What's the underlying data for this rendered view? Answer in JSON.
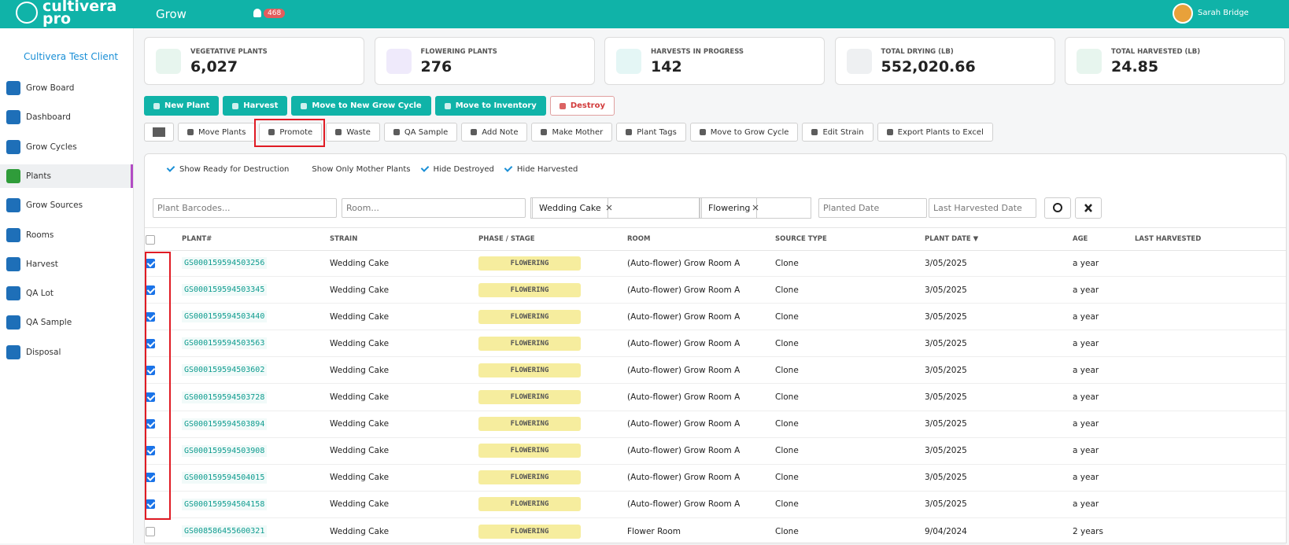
{
  "header": {
    "logo_top": "cultivera",
    "logo_bottom": "pro",
    "module": "Grow",
    "notification_count": "468",
    "user": "Sarah Bridge"
  },
  "sidebar": {
    "client": "Cultivera Test Client",
    "items": [
      {
        "label": "Grow Board",
        "active": false
      },
      {
        "label": "Dashboard",
        "active": false
      },
      {
        "label": "Grow Cycles",
        "active": false
      },
      {
        "label": "Plants",
        "active": true
      },
      {
        "label": "Grow Sources",
        "active": false
      },
      {
        "label": "Rooms",
        "active": false
      },
      {
        "label": "Harvest",
        "active": false
      },
      {
        "label": "QA Lot",
        "active": false
      },
      {
        "label": "QA Sample",
        "active": false
      },
      {
        "label": "Disposal",
        "active": false
      }
    ]
  },
  "stats": [
    {
      "label": "VEGETATIVE PLANTS",
      "value": "6,027"
    },
    {
      "label": "FLOWERING PLANTS",
      "value": "276"
    },
    {
      "label": "HARVESTS IN PROGRESS",
      "value": "142"
    },
    {
      "label": "TOTAL DRYING (LB)",
      "value": "552,020.66"
    },
    {
      "label": "TOTAL HARVESTED (LB)",
      "value": "24.85"
    }
  ],
  "actions": {
    "primary": [
      {
        "label": "New Plant",
        "style": "teal"
      },
      {
        "label": "Harvest",
        "style": "teal"
      },
      {
        "label": "Move to New Grow Cycle",
        "style": "teal"
      },
      {
        "label": "Move to Inventory",
        "style": "teal"
      },
      {
        "label": "Destroy",
        "style": "danger"
      }
    ],
    "secondary": [
      "Move Plants",
      "Promote",
      "Waste",
      "QA Sample",
      "Add Note",
      "Make Mother",
      "Plant Tags",
      "Move to Grow Cycle",
      "Edit Strain",
      "Export Plants to Excel"
    ]
  },
  "filters": [
    {
      "label": "Show Ready for Destruction",
      "checked": true
    },
    {
      "label": "Show Only Mother Plants",
      "checked": false
    },
    {
      "label": "Hide Destroyed",
      "checked": true
    },
    {
      "label": "Hide Harvested",
      "checked": true
    }
  ],
  "search": {
    "plant_barcodes": "Plant Barcodes...",
    "room": "Room...",
    "strain_tag": "Wedding Cake",
    "phase_tag": "Flowering",
    "planted_date": "Planted Date",
    "last_harvested_date": "Last Harvested Date"
  },
  "table": {
    "columns": [
      "PLANT#",
      "STRAIN",
      "PHASE / STAGE",
      "ROOM",
      "SOURCE TYPE",
      "PLANT DATE ▼",
      "AGE",
      "LAST HARVESTED"
    ],
    "rows": [
      {
        "checked": true,
        "cells": [
          "GS000159594503256",
          "Wedding Cake",
          "FLOWERING",
          "(Auto-flower) Grow Room A",
          "Clone",
          "3/05/2025",
          "a year"
        ]
      },
      {
        "checked": true,
        "cells": [
          "GS000159594503345",
          "Wedding Cake",
          "FLOWERING",
          "(Auto-flower) Grow Room A",
          "Clone",
          "3/05/2025",
          "a year"
        ]
      },
      {
        "checked": true,
        "cells": [
          "GS000159594503440",
          "Wedding Cake",
          "FLOWERING",
          "(Auto-flower) Grow Room A",
          "Clone",
          "3/05/2025",
          "a year"
        ]
      },
      {
        "checked": true,
        "cells": [
          "GS000159594503563",
          "Wedding Cake",
          "FLOWERING",
          "(Auto-flower) Grow Room A",
          "Clone",
          "3/05/2025",
          "a year"
        ]
      },
      {
        "checked": true,
        "cells": [
          "GS000159594503602",
          "Wedding Cake",
          "FLOWERING",
          "(Auto-flower) Grow Room A",
          "Clone",
          "3/05/2025",
          "a year"
        ]
      },
      {
        "checked": true,
        "cells": [
          "GS000159594503728",
          "Wedding Cake",
          "FLOWERING",
          "(Auto-flower) Grow Room A",
          "Clone",
          "3/05/2025",
          "a year"
        ]
      },
      {
        "checked": true,
        "cells": [
          "GS000159594503894",
          "Wedding Cake",
          "FLOWERING",
          "(Auto-flower) Grow Room A",
          "Clone",
          "3/05/2025",
          "a year"
        ]
      },
      {
        "checked": true,
        "cells": [
          "GS000159594503908",
          "Wedding Cake",
          "FLOWERING",
          "(Auto-flower) Grow Room A",
          "Clone",
          "3/05/2025",
          "a year"
        ]
      },
      {
        "checked": true,
        "cells": [
          "GS000159594504015",
          "Wedding Cake",
          "FLOWERING",
          "(Auto-flower) Grow Room A",
          "Clone",
          "3/05/2025",
          "a year"
        ]
      },
      {
        "checked": true,
        "cells": [
          "GS000159594504158",
          "Wedding Cake",
          "FLOWERING",
          "(Auto-flower) Grow Room A",
          "Clone",
          "3/05/2025",
          "a year"
        ]
      },
      {
        "checked": false,
        "cells": [
          "GS008586455600321",
          "Wedding Cake",
          "FLOWERING",
          "Flower Room",
          "Clone",
          "9/04/2024",
          "2 years"
        ]
      }
    ]
  }
}
